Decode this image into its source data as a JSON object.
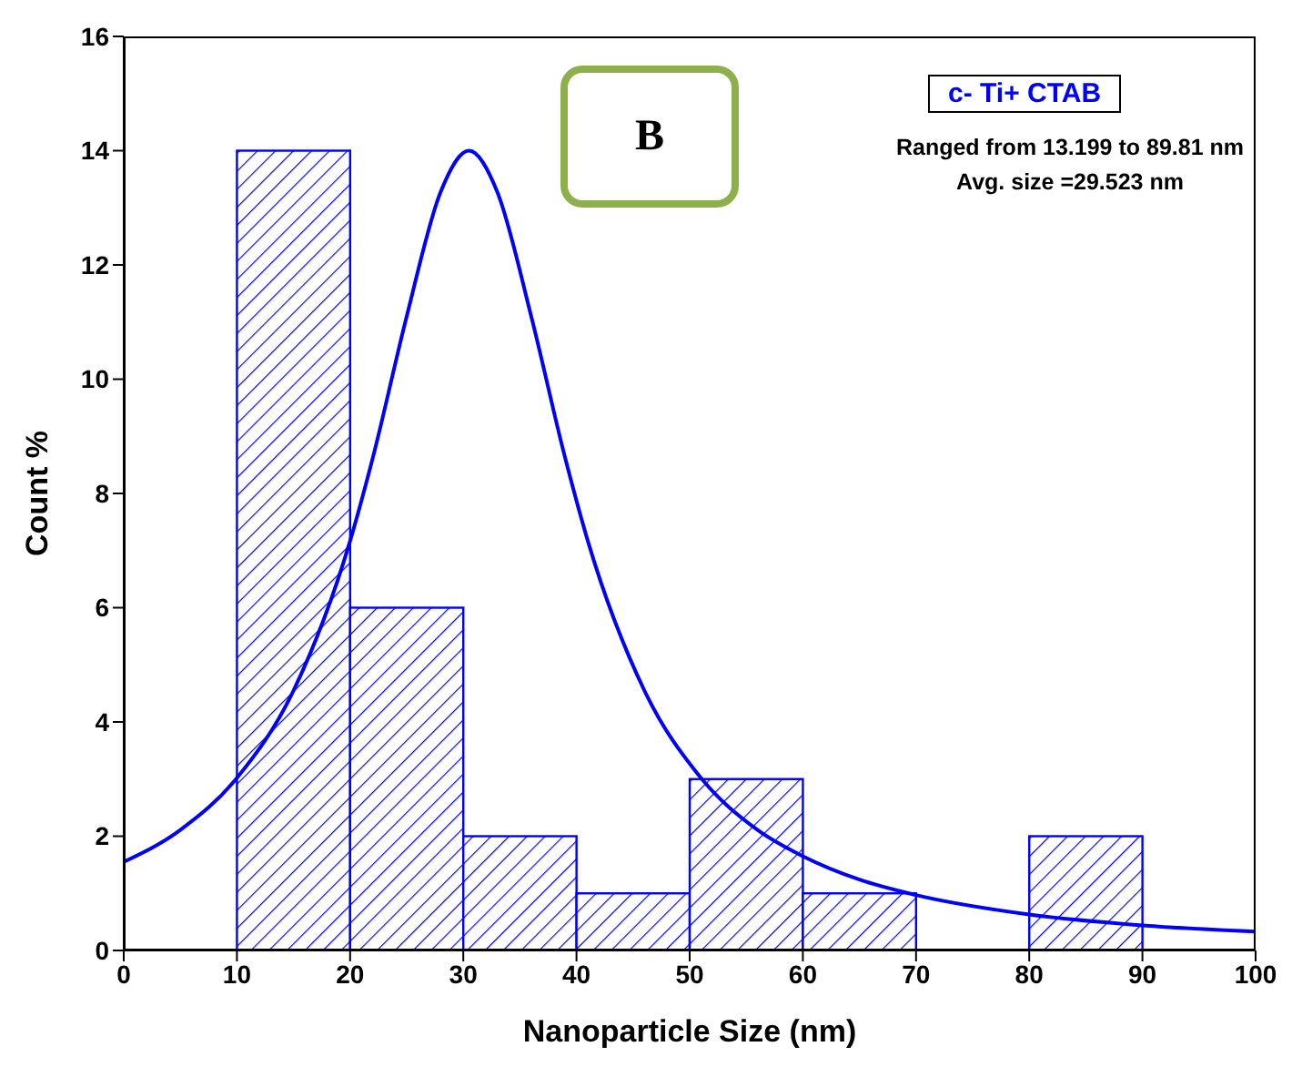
{
  "chart_data": {
    "type": "histogram",
    "xlabel": "Nanoparticle Size (nm)",
    "ylabel": "Count %",
    "bins": [
      10,
      20,
      30,
      40,
      50,
      60,
      70,
      80,
      90
    ],
    "values": [
      14,
      6,
      2,
      1,
      3,
      1,
      0,
      2
    ],
    "color": "#0000ff",
    "series": [
      {
        "type": "line",
        "color": "#0000ff",
        "x": [
          0,
          5,
          10,
          15,
          20,
          22,
          25,
          28,
          30.5,
          33,
          36,
          39,
          41,
          46,
          51,
          56,
          60,
          65,
          70,
          80,
          90,
          100
        ],
        "values": [
          1.55,
          2.11,
          3.02,
          4.55,
          7.17,
          8.62,
          11.1,
          13.28,
          14,
          13.28,
          11.1,
          8.62,
          7.17,
          4.55,
          3.02,
          2.11,
          1.65,
          1.24,
          0.97,
          0.63,
          0.44,
          0.33
        ]
      }
    ],
    "xlim": [
      0,
      100
    ],
    "xticks": [
      0,
      10,
      20,
      30,
      40,
      50,
      60,
      70,
      80,
      90,
      100
    ],
    "ylim": [
      0,
      16
    ],
    "yticks": [
      0,
      2,
      4,
      6,
      8,
      10,
      12,
      14,
      16
    ],
    "grid": false,
    "legend": false,
    "annotations": [
      "B",
      "c- Ti+ CTAB",
      "Ranged from 13.199 to 89.81 nm",
      "Avg. size =29.523 nm"
    ]
  }
}
